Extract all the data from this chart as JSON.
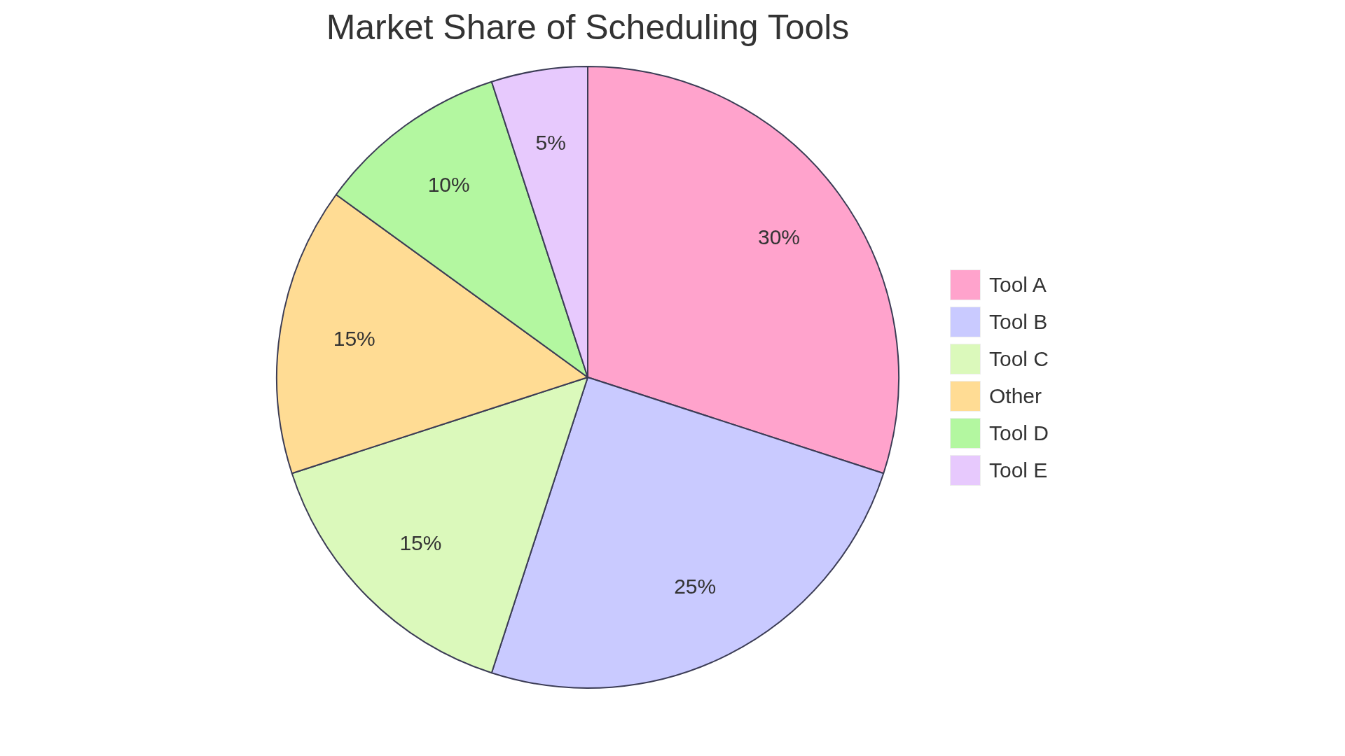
{
  "chart_data": {
    "type": "pie",
    "title": "Market Share of Scheduling Tools",
    "categories": [
      "Tool A",
      "Tool B",
      "Tool C",
      "Other",
      "Tool D",
      "Tool E"
    ],
    "values": [
      30,
      25,
      15,
      15,
      10,
      5
    ],
    "colors": [
      "#ffa3cc",
      "#c9caff",
      "#dbf9bb",
      "#ffdc94",
      "#b3f7a0",
      "#e7c9fd"
    ],
    "value_labels": [
      "30%",
      "25%",
      "15%",
      "15%",
      "10%",
      "5%"
    ],
    "legend": "right"
  }
}
